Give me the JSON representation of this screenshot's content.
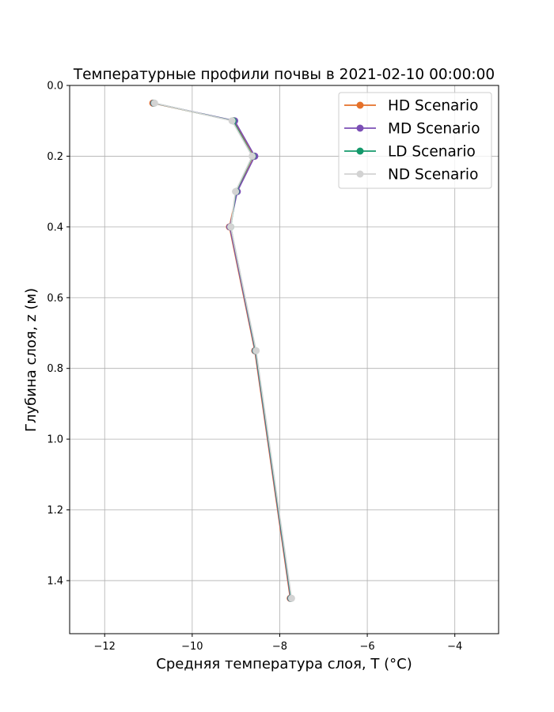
{
  "chart_data": {
    "type": "line",
    "title": "Температурные профили почвы в 2021-02-10 00:00:00",
    "xlabel": "Средняя температура слоя, T (°C)",
    "ylabel": "Глубина слоя, z (м)",
    "xlim": [
      -12.8,
      -3.0
    ],
    "ylim": [
      1.55,
      0.0
    ],
    "y_inverted": true,
    "xticks": [
      "−12",
      "−10",
      "−8",
      "−6",
      "−4"
    ],
    "xtick_values": [
      -12,
      -10,
      -8,
      -6,
      -4
    ],
    "yticks": [
      "0.0",
      "0.2",
      "0.4",
      "0.6",
      "0.8",
      "1.0",
      "1.2",
      "1.4"
    ],
    "ytick_values": [
      0.0,
      0.2,
      0.4,
      0.6,
      0.8,
      1.0,
      1.2,
      1.4
    ],
    "grid": true,
    "legend_position": "top-right",
    "depths": [
      0.05,
      0.1,
      0.2,
      0.3,
      0.4,
      0.75,
      1.45
    ],
    "series": [
      {
        "name": "HD Scenario",
        "color": "#e5712a",
        "values": [
          -10.9,
          -9.05,
          -8.58,
          -8.98,
          -9.15,
          -8.57,
          -7.76
        ]
      },
      {
        "name": "MD Scenario",
        "color": "#7b4fb5",
        "values": [
          -10.88,
          -9.03,
          -8.57,
          -8.97,
          -9.14,
          -8.56,
          -7.75
        ]
      },
      {
        "name": "LD Scenario",
        "color": "#14996b",
        "values": [
          -10.87,
          -9.07,
          -8.62,
          -9.0,
          -9.12,
          -8.55,
          -7.74
        ]
      },
      {
        "name": "ND Scenario",
        "color": "#d3d3d3",
        "values": [
          -10.86,
          -9.09,
          -8.63,
          -9.01,
          -9.12,
          -8.54,
          -7.73
        ]
      }
    ]
  }
}
